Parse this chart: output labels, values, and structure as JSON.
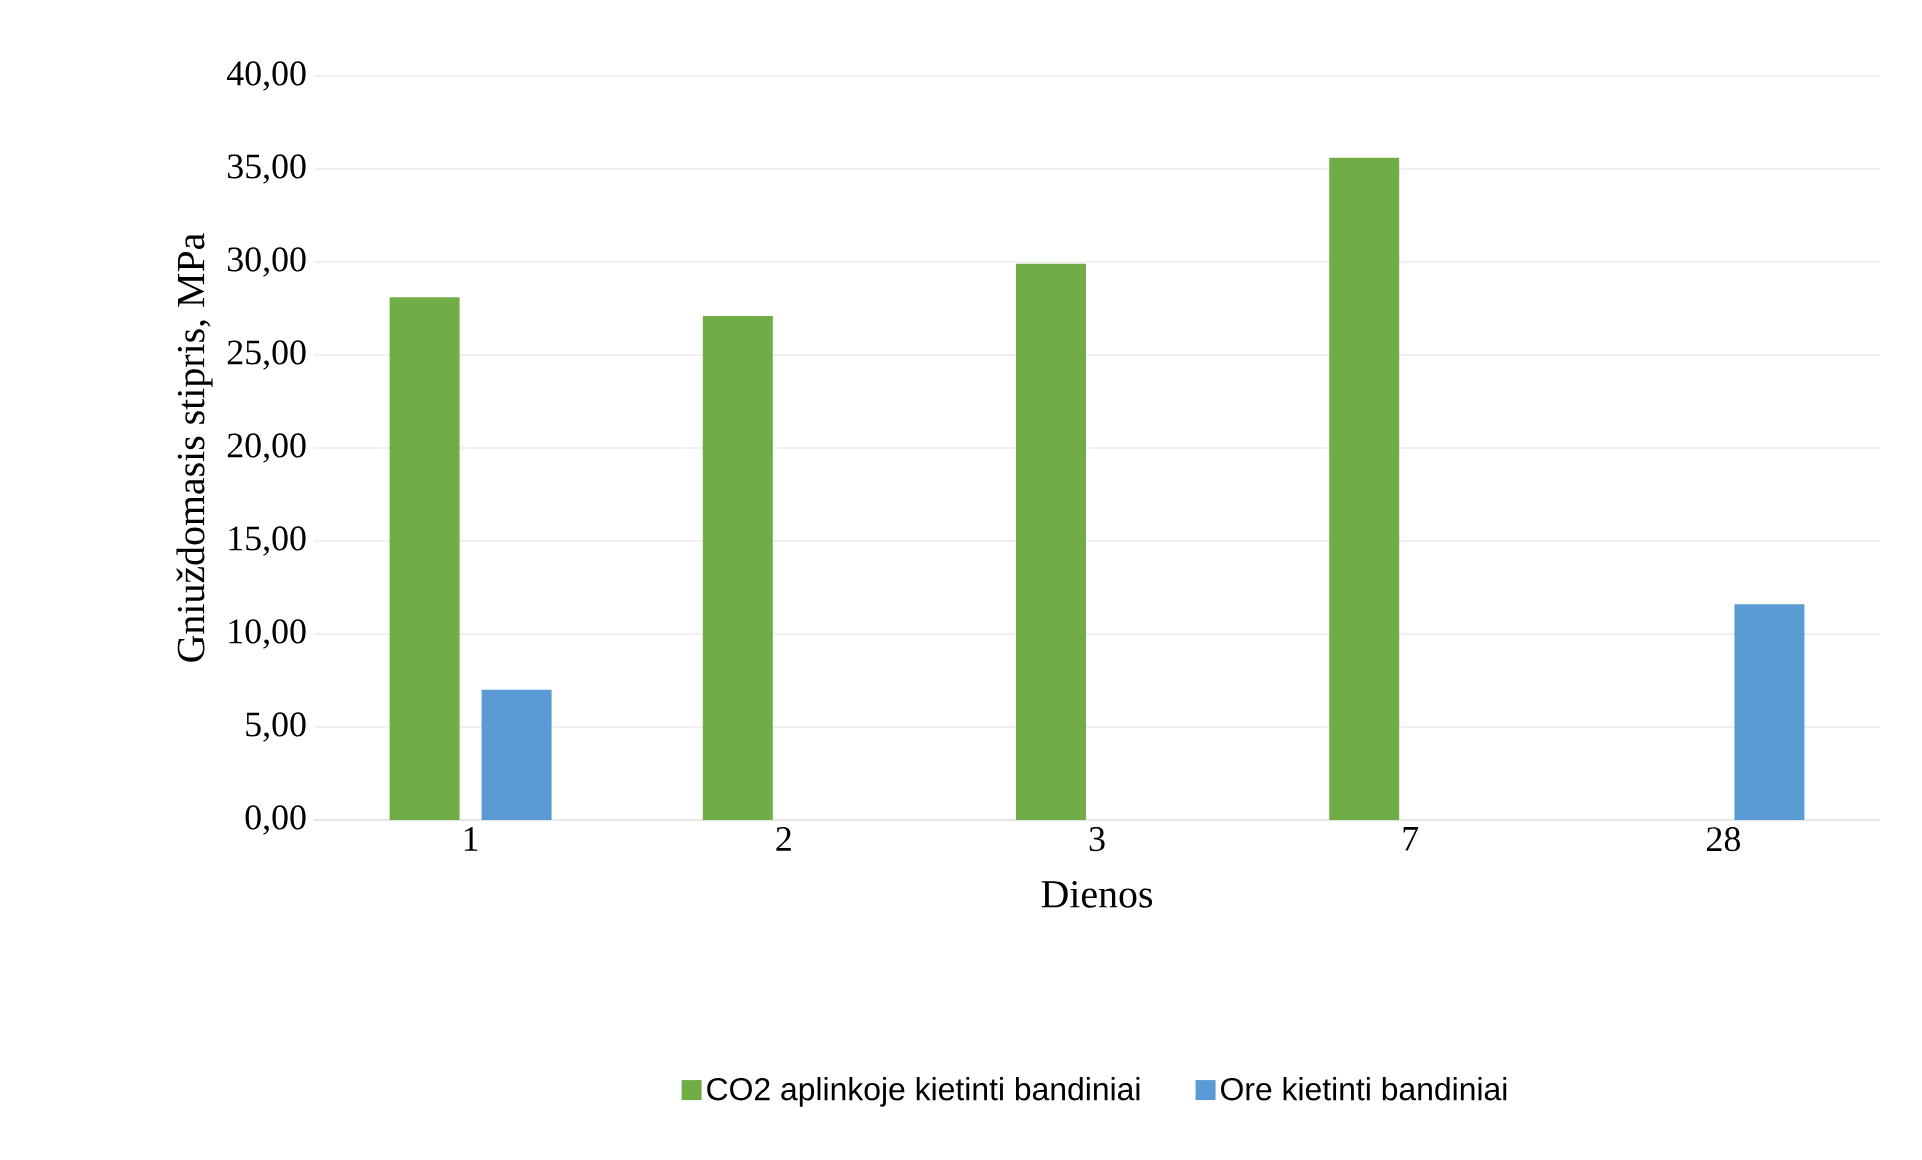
{
  "chart_data": {
    "type": "bar",
    "xlabel": "Dienos",
    "ylabel": "Gniuždomasis stipris, MPa",
    "categories": [
      "1",
      "2",
      "3",
      "7",
      "28"
    ],
    "series": [
      {
        "name": "CO2 aplinkoje kietinti bandiniai",
        "color": "#70ad47",
        "values": [
          28.1,
          27.1,
          29.9,
          35.6,
          null
        ]
      },
      {
        "name": "Ore kietinti bandiniai",
        "color": "#5b9bd5",
        "values": [
          7.0,
          null,
          null,
          null,
          11.6
        ]
      }
    ],
    "ylim": [
      0,
      40
    ],
    "yticks": [
      {
        "value": 0,
        "label": "0,00"
      },
      {
        "value": 5,
        "label": "5,00"
      },
      {
        "value": 10,
        "label": "10,00"
      },
      {
        "value": 15,
        "label": "15,00"
      },
      {
        "value": 20,
        "label": "20,00"
      },
      {
        "value": 25,
        "label": "25,00"
      },
      {
        "value": 30,
        "label": "30,00"
      },
      {
        "value": 35,
        "label": "35,00"
      },
      {
        "value": 40,
        "label": "40,00"
      }
    ],
    "grid": "y",
    "legend": "bottom"
  }
}
